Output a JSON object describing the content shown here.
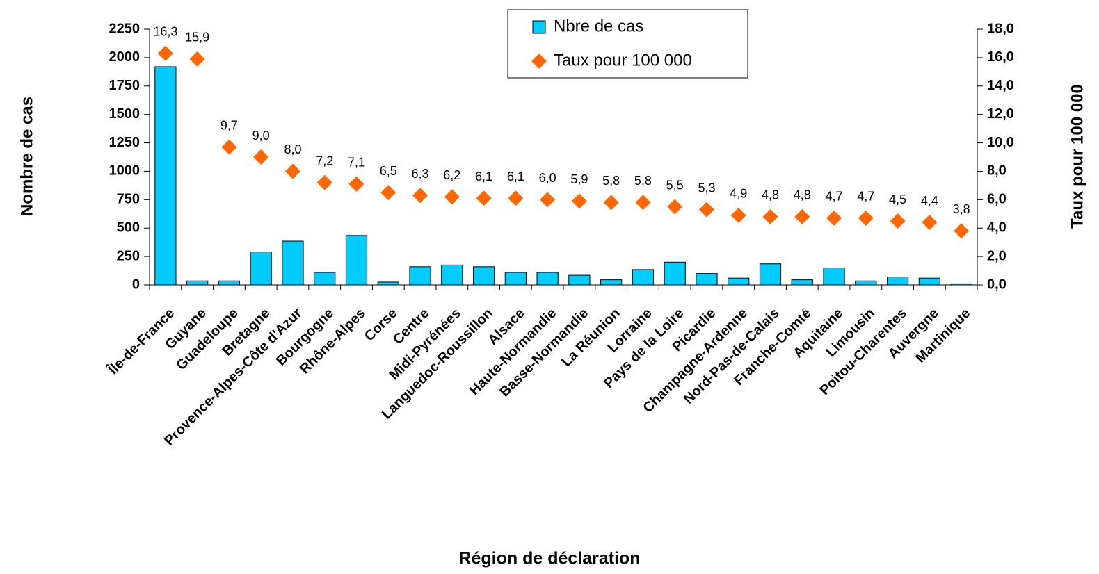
{
  "chart_data": {
    "type": "bar",
    "x_label": "Région de déclaration",
    "y_label": "Nombre de cas",
    "y2_label": "Taux pour 100 000",
    "categories": [
      "Île-de-France",
      "Guyane",
      "Guadeloupe",
      "Bretagne",
      "Provence-Alpes-Côte d'Azur",
      "Bourgogne",
      "Rhône-Alpes",
      "Corse",
      "Centre",
      "Midi-Pyrénées",
      "Languedoc-Roussillon",
      "Alsace",
      "Haute-Normandie",
      "Basse-Normandie",
      "La Réunion",
      "Lorraine",
      "Pays de la Loire",
      "Picardie",
      "Champagne-Ardenne",
      "Nord-Pas-de-Calais",
      "Franche-Comté",
      "Aquitaine",
      "Limousin",
      "Poitou-Charentes",
      "Auvergne",
      "Martinique"
    ],
    "series": [
      {
        "name": "Nbre de cas",
        "type": "bar",
        "color": "#00ccff",
        "values": [
          1920,
          35,
          35,
          290,
          385,
          110,
          435,
          25,
          160,
          175,
          160,
          110,
          110,
          85,
          45,
          135,
          200,
          100,
          60,
          185,
          45,
          150,
          35,
          70,
          60,
          10
        ]
      },
      {
        "name": "Taux pour 100 000",
        "type": "scatter",
        "axis": "y2",
        "color": "#ff6600",
        "values": [
          16.3,
          15.9,
          9.7,
          9.0,
          8.0,
          7.2,
          7.1,
          6.5,
          6.3,
          6.2,
          6.1,
          6.1,
          6.0,
          5.9,
          5.8,
          5.8,
          5.5,
          5.3,
          4.9,
          4.8,
          4.8,
          4.7,
          4.7,
          4.5,
          4.4,
          3.8
        ],
        "value_labels": [
          "16,3",
          "15,9",
          "9,7",
          "9,0",
          "8,0",
          "7,2",
          "7,1",
          "6,5",
          "6,3",
          "6,2",
          "6,1",
          "6,1",
          "6,0",
          "5,9",
          "5,8",
          "5,8",
          "5,5",
          "5,3",
          "4,9",
          "4,8",
          "4,8",
          "4,7",
          "4,7",
          "4,5",
          "4,4",
          "3,8"
        ]
      }
    ],
    "ylim": [
      0,
      2250
    ],
    "yticks": [
      0,
      250,
      500,
      750,
      1000,
      1250,
      1500,
      1750,
      2000,
      2250
    ],
    "y2lim": [
      0,
      18
    ],
    "y2ticks": [
      {
        "value": 0,
        "label": "0,0"
      },
      {
        "value": 2,
        "label": "2,0"
      },
      {
        "value": 4,
        "label": "4,0"
      },
      {
        "value": 6,
        "label": "6,0"
      },
      {
        "value": 8,
        "label": "8,0"
      },
      {
        "value": 10,
        "label": "10,0"
      },
      {
        "value": 12,
        "label": "12,0"
      },
      {
        "value": 14,
        "label": "14,0"
      },
      {
        "value": 16,
        "label": "16,0"
      },
      {
        "value": 18,
        "label": "18,0"
      }
    ],
    "legend": "top"
  }
}
